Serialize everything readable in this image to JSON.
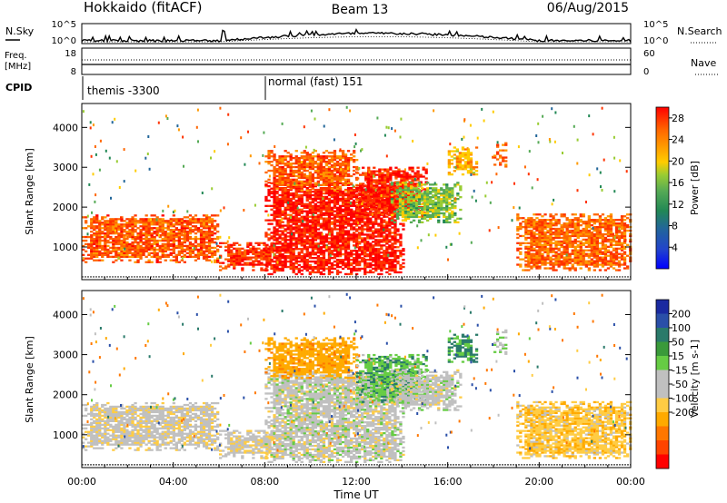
{
  "header": {
    "station": "Hokkaido (fitACF)",
    "beam": "Beam 13",
    "date": "06/Aug/2015"
  },
  "xaxis": {
    "label": "Time UT",
    "ticks": [
      "00:00",
      "04:00",
      "08:00",
      "12:00",
      "16:00",
      "20:00",
      "00:00"
    ],
    "range_hours": [
      0,
      24
    ]
  },
  "nsky_panel": {
    "left_label": "N.Sky",
    "left_ticks": [
      "10^5",
      "10^0"
    ],
    "right_label": "N.Search",
    "right_ticks": [
      "10^5",
      "10^0"
    ]
  },
  "freq_panel": {
    "left_label_line1": "Freq.",
    "left_label_line2": "[MHz]",
    "left_ticks": [
      "18",
      "8"
    ],
    "right_label": "Nave",
    "right_ticks": [
      "60",
      "0"
    ]
  },
  "cpid_panel": {
    "label": "CPID",
    "segments": [
      {
        "start_hour": 0.0,
        "text": "themis -3300"
      },
      {
        "start_hour": 8.0,
        "text": "normal (fast) 151"
      }
    ]
  },
  "power_panel": {
    "ylabel": "Slant Range [km]",
    "yticks": [
      "4000",
      "3000",
      "2000",
      "1000"
    ],
    "colorbar_label": "Power [dB]",
    "colorbar_ticks": [
      "28",
      "24",
      "20",
      "16",
      "12",
      "8",
      "4"
    ],
    "colorbar_colors": [
      "#ff0000",
      "#ff3300",
      "#ff6600",
      "#ff9900",
      "#ffcc00",
      "#99cc33",
      "#55aa55",
      "#228855",
      "#226699",
      "#2244cc",
      "#0000ff"
    ]
  },
  "velocity_panel": {
    "ylabel": "Slant Range [km]",
    "yticks": [
      "4000",
      "3000",
      "2000",
      "1000"
    ],
    "colorbar_label": "Velocity [m s-1]",
    "colorbar_ticks": [
      "200",
      "100",
      "50",
      "15",
      "-15",
      "-50",
      "-100",
      "-200"
    ],
    "colorbar_colors": [
      "#1a2aa0",
      "#2a4fa8",
      "#2a7a6a",
      "#3a9a3a",
      "#66cc44",
      "#c0c0c0",
      "#c0c0c0",
      "#ffcc44",
      "#ffaa00",
      "#ff7700",
      "#ff4400",
      "#ff0000"
    ]
  },
  "chart_data": {
    "type": "heatmap",
    "title": "Hokkaido (fitACF)  Beam 13  06/Aug/2015",
    "xlabel": "Time UT",
    "ylabel": "Slant Range [km]",
    "xlim": [
      0,
      24
    ],
    "ylim": [
      180,
      4600
    ],
    "power_scale_db": [
      0,
      30
    ],
    "velocity_scale_ms": [
      -200,
      200
    ],
    "regions": [
      {
        "t0": 0.0,
        "t1": 6.0,
        "r0": 600,
        "r1": 1800,
        "power_db": 25,
        "velocity": -5
      },
      {
        "t0": 6.0,
        "t1": 8.5,
        "r0": 400,
        "r1": 1100,
        "power_db": 27,
        "velocity": -5
      },
      {
        "t0": 8.0,
        "t1": 14.0,
        "r0": 300,
        "r1": 2600,
        "power_db": 29,
        "velocity": 0
      },
      {
        "t0": 8.0,
        "t1": 12.0,
        "r0": 2400,
        "r1": 3400,
        "power_db": 25,
        "velocity": -60
      },
      {
        "t0": 12.0,
        "t1": 15.0,
        "r0": 1800,
        "r1": 3000,
        "power_db": 28,
        "velocity": 30
      },
      {
        "t0": 13.5,
        "t1": 16.5,
        "r0": 1600,
        "r1": 2600,
        "power_db": 14,
        "velocity": 0
      },
      {
        "t0": 16.0,
        "t1": 17.3,
        "r0": 2800,
        "r1": 3500,
        "power_db": 20,
        "velocity": 45
      },
      {
        "t0": 18.0,
        "t1": 18.6,
        "r0": 3000,
        "r1": 3600,
        "power_db": 24,
        "velocity": 10
      },
      {
        "t0": 19.0,
        "t1": 24.0,
        "r0": 400,
        "r1": 1800,
        "power_db": 24,
        "velocity": -30
      }
    ]
  }
}
